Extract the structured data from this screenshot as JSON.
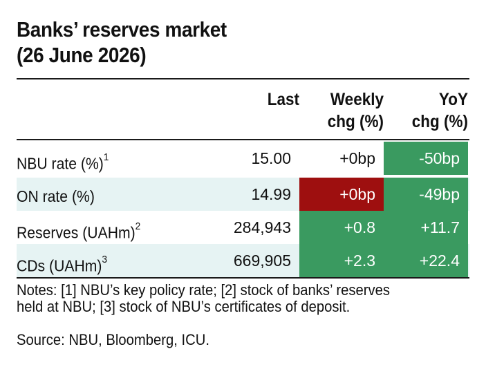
{
  "title_line1": "Banks’ reserves market",
  "title_line2": "(26 June 2026)",
  "headers": {
    "last": "Last",
    "weekly_line1": "Weekly",
    "weekly_line2": "chg (%)",
    "yoy_line1": "YoY",
    "yoy_line2": "chg (%)"
  },
  "rows": [
    {
      "label": "NBU rate (%)",
      "note": "1",
      "last": "15.00",
      "weekly": "+0bp",
      "yoy": "-50bp"
    },
    {
      "label": "ON rate (%)",
      "note": "",
      "last": "14.99",
      "weekly": "+0bp",
      "yoy": "-49bp"
    },
    {
      "label": "Reserves (UAHm)",
      "note": "2",
      "last": "284,943",
      "weekly": "+0.8",
      "yoy": "+11.7"
    },
    {
      "label": "CDs (UAHm)",
      "note": "3",
      "last": "669,905",
      "weekly": "+2.3",
      "yoy": "+22.4"
    }
  ],
  "colors": {
    "positive": "#3a9a60",
    "negative": "#9e0f0f",
    "row_shade": "#e6f3f3"
  },
  "notes_line1": "Notes: [1] NBU’s key policy rate; [2] stock of banks’ reserves",
  "notes_line2": "held at NBU; [3] stock of NBU’s certificates of deposit.",
  "source": "Source: NBU, Bloomberg, ICU."
}
